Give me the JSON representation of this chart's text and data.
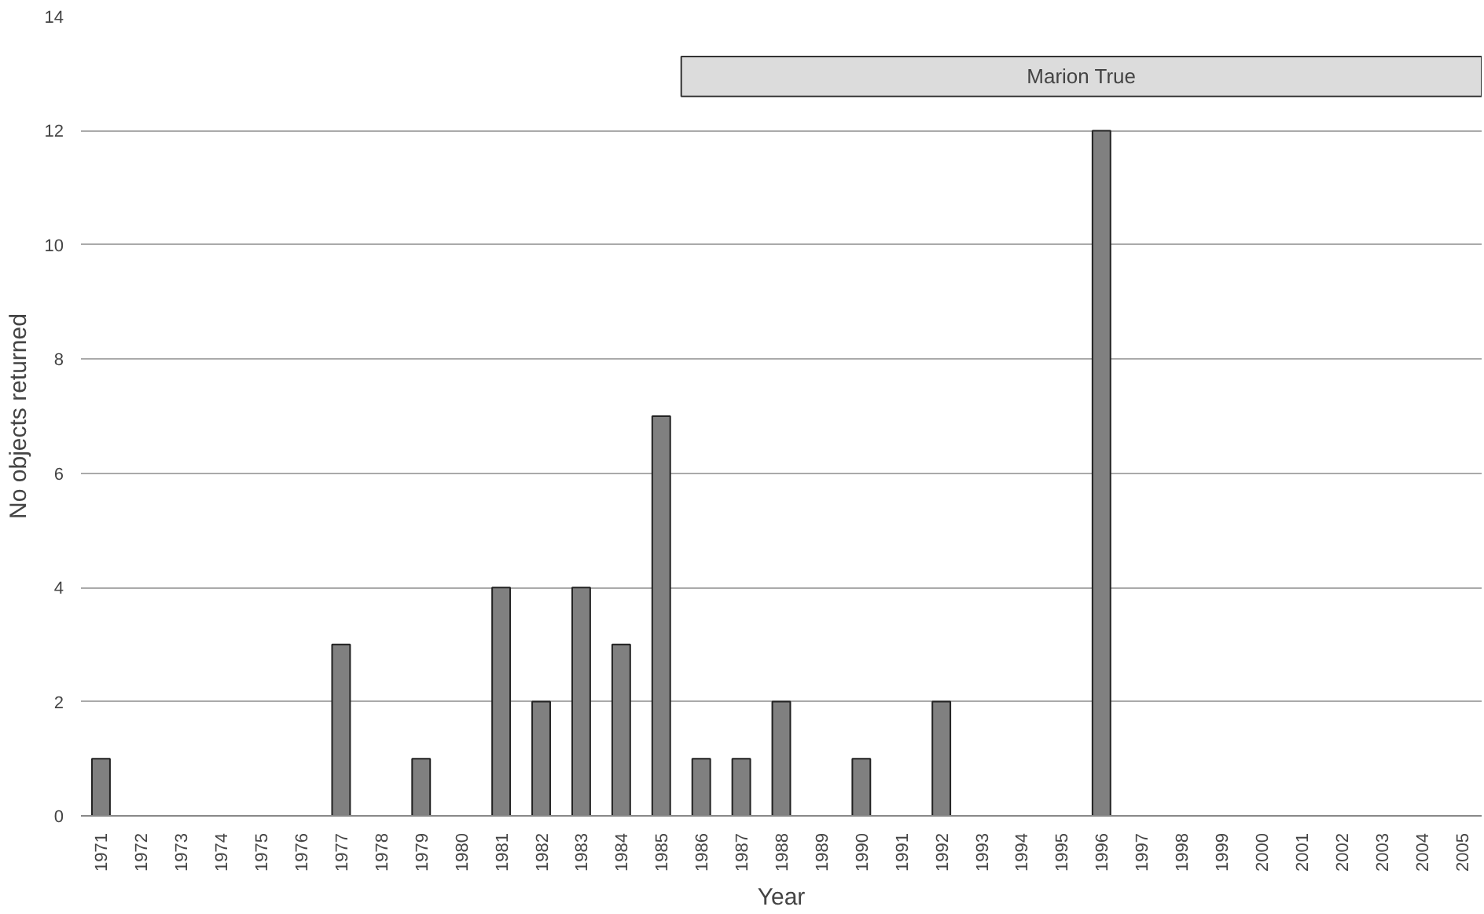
{
  "chart_data": {
    "type": "bar",
    "xlabel": "Year",
    "ylabel": "No objects returned",
    "categories": [
      "1971",
      "1972",
      "1973",
      "1974",
      "1975",
      "1976",
      "1977",
      "1978",
      "1979",
      "1980",
      "1981",
      "1982",
      "1983",
      "1984",
      "1985",
      "1986",
      "1987",
      "1988",
      "1989",
      "1990",
      "1991",
      "1992",
      "1993",
      "1994",
      "1995",
      "1996",
      "1997",
      "1998",
      "1999",
      "2000",
      "2001",
      "2002",
      "2003",
      "2004",
      "2005"
    ],
    "values": [
      1,
      0,
      0,
      0,
      0,
      0,
      3,
      0,
      1,
      0,
      4,
      2,
      4,
      3,
      7,
      1,
      1,
      2,
      0,
      1,
      0,
      2,
      0,
      0,
      0,
      12,
      0,
      0,
      0,
      0,
      0,
      0,
      0,
      0,
      0
    ],
    "color": "#808080",
    "ylim": [
      0,
      14
    ],
    "yticks": [
      0,
      2,
      4,
      6,
      8,
      10,
      12,
      14
    ],
    "grid": "y",
    "bands": [
      {
        "axis": "x",
        "from": "1986",
        "to": "2005",
        "label": "Marion True",
        "color": "#dcdcdc"
      }
    ]
  }
}
